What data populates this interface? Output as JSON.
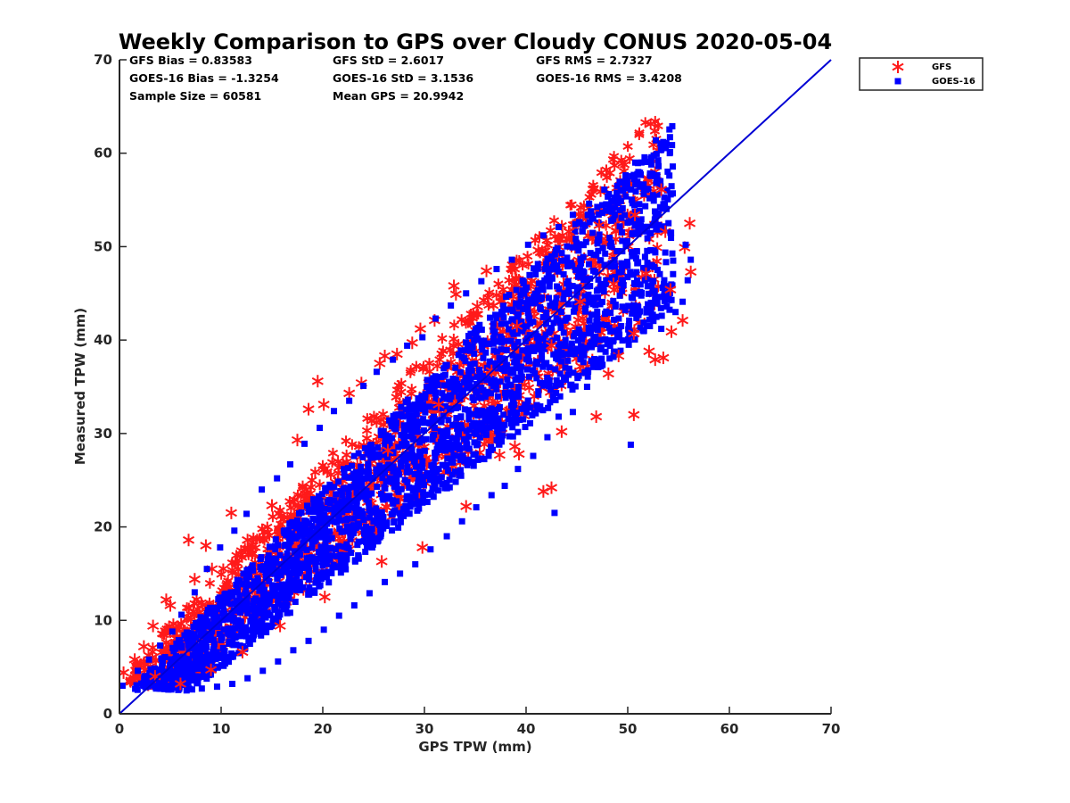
{
  "chart_data": {
    "type": "scatter",
    "title": "Weekly Comparison to GPS over Cloudy CONUS 2020-05-04",
    "xlabel": "GPS TPW (mm)",
    "ylabel": "Measured TPW (mm)",
    "xlim": [
      0,
      70
    ],
    "ylim": [
      0,
      70
    ],
    "xticks": [
      0,
      10,
      20,
      30,
      40,
      50,
      60,
      70
    ],
    "yticks": [
      0,
      10,
      20,
      30,
      40,
      50,
      60,
      70
    ],
    "grid": false,
    "legend_position": "outside top-right",
    "stats": [
      [
        "GFS Bias = 0.83583",
        "GFS StD = 2.6017",
        "GFS RMS = 2.7327"
      ],
      [
        "GOES-16 Bias = -1.3254",
        "GOES-16 StD = 3.1536",
        "GOES-16 RMS = 3.4208"
      ],
      [
        "Sample Size = 60581",
        "Mean GPS = 20.9942",
        ""
      ]
    ],
    "reference_line": {
      "x": [
        0,
        70
      ],
      "y": [
        0,
        70
      ],
      "color": "#0000d4"
    },
    "series": [
      {
        "name": "GFS",
        "marker": "asterisk",
        "color": "#ff1a1a",
        "points": [
          [
            0.4,
            4.4
          ],
          [
            1.5,
            5.8
          ],
          [
            2.4,
            7.2
          ],
          [
            3.3,
            9.4
          ],
          [
            4.6,
            12.2
          ],
          [
            5.0,
            11.6
          ],
          [
            6.8,
            18.6
          ],
          [
            8.5,
            18.0
          ],
          [
            9.1,
            15.5
          ],
          [
            11.0,
            21.5
          ],
          [
            12.6,
            18.6
          ],
          [
            15.0,
            22.3
          ],
          [
            17.5,
            29.3
          ],
          [
            18.6,
            32.6
          ],
          [
            19.5,
            35.6
          ],
          [
            20.1,
            33.1
          ],
          [
            22.6,
            34.3
          ],
          [
            23.8,
            35.4
          ],
          [
            25.6,
            37.5
          ],
          [
            26.1,
            38.3
          ],
          [
            27.3,
            38.5
          ],
          [
            28.8,
            39.7
          ],
          [
            29.6,
            41.2
          ],
          [
            31.0,
            42.1
          ],
          [
            32.9,
            45.8
          ],
          [
            33.1,
            44.9
          ],
          [
            35.2,
            43.6
          ],
          [
            36.1,
            47.4
          ],
          [
            41.2,
            49.6
          ],
          [
            44.2,
            51.6
          ],
          [
            47.2,
            52.3
          ],
          [
            50.7,
            53.4
          ],
          [
            53.3,
            56.1
          ],
          [
            53.7,
            51.6
          ],
          [
            55.6,
            49.9
          ],
          [
            56.1,
            52.5
          ],
          [
            56.2,
            47.3
          ],
          [
            55.4,
            42.1
          ],
          [
            54.3,
            40.9
          ],
          [
            53.5,
            38.1
          ],
          [
            52.7,
            37.9
          ],
          [
            52.1,
            38.8
          ],
          [
            50.6,
            40.7
          ],
          [
            49.1,
            38.3
          ],
          [
            48.1,
            36.4
          ],
          [
            46.9,
            31.8
          ],
          [
            50.6,
            32.0
          ],
          [
            43.5,
            30.2
          ],
          [
            42.5,
            24.2
          ],
          [
            41.7,
            23.8
          ],
          [
            39.3,
            27.8
          ],
          [
            38.9,
            28.6
          ],
          [
            37.4,
            27.7
          ],
          [
            34.1,
            22.2
          ],
          [
            29.8,
            17.8
          ],
          [
            25.8,
            16.3
          ],
          [
            20.2,
            12.5
          ],
          [
            15.8,
            9.4
          ],
          [
            12.1,
            6.6
          ],
          [
            9.0,
            4.7
          ],
          [
            6.0,
            3.2
          ],
          [
            3.5,
            4.0
          ],
          [
            7.4,
            14.4
          ],
          [
            13.1,
            17.2
          ],
          [
            21.5,
            27.0
          ],
          [
            26.4,
            28.2
          ],
          [
            31.4,
            33.1
          ],
          [
            36.6,
            36.7
          ],
          [
            39.1,
            41.5
          ],
          [
            42.5,
            39.4
          ],
          [
            45.3,
            44.1
          ],
          [
            48.6,
            46.0
          ],
          [
            51.8,
            47.1
          ],
          [
            54.2,
            45.4
          ]
        ]
      },
      {
        "name": "GOES-16",
        "marker": "square",
        "color": "#0000ff",
        "points": [
          [
            0.3,
            3.0
          ],
          [
            1.8,
            4.6
          ],
          [
            2.9,
            5.8
          ],
          [
            4.0,
            7.3
          ],
          [
            5.2,
            8.8
          ],
          [
            6.1,
            10.6
          ],
          [
            7.4,
            13.0
          ],
          [
            8.6,
            15.5
          ],
          [
            9.9,
            17.8
          ],
          [
            11.3,
            19.6
          ],
          [
            12.5,
            21.4
          ],
          [
            14.0,
            24.0
          ],
          [
            15.5,
            25.2
          ],
          [
            16.8,
            26.7
          ],
          [
            18.2,
            28.9
          ],
          [
            19.7,
            30.6
          ],
          [
            21.1,
            32.4
          ],
          [
            22.6,
            33.5
          ],
          [
            24.0,
            35.1
          ],
          [
            25.3,
            36.6
          ],
          [
            26.9,
            37.9
          ],
          [
            28.3,
            39.4
          ],
          [
            29.8,
            40.3
          ],
          [
            31.1,
            42.3
          ],
          [
            32.6,
            43.7
          ],
          [
            34.1,
            45.0
          ],
          [
            35.6,
            46.3
          ],
          [
            37.1,
            47.6
          ],
          [
            38.6,
            48.6
          ],
          [
            40.2,
            50.2
          ],
          [
            41.7,
            51.2
          ],
          [
            43.2,
            52.1
          ],
          [
            44.6,
            53.4
          ],
          [
            46.2,
            54.6
          ],
          [
            47.7,
            56.1
          ],
          [
            49.5,
            54.1
          ],
          [
            51.1,
            52.8
          ],
          [
            52.6,
            52.3
          ],
          [
            54.2,
            51.5
          ],
          [
            55.7,
            50.2
          ],
          [
            56.2,
            48.6
          ],
          [
            55.9,
            46.4
          ],
          [
            55.4,
            44.1
          ],
          [
            54.7,
            43.0
          ],
          [
            53.3,
            41.2
          ],
          [
            51.6,
            41.0
          ],
          [
            50.1,
            39.5
          ],
          [
            48.6,
            38.2
          ],
          [
            47.1,
            37.1
          ],
          [
            46.0,
            35.0
          ],
          [
            44.6,
            32.3
          ],
          [
            43.2,
            31.8
          ],
          [
            42.1,
            29.6
          ],
          [
            40.7,
            27.6
          ],
          [
            39.2,
            26.2
          ],
          [
            37.9,
            24.4
          ],
          [
            36.6,
            23.4
          ],
          [
            35.1,
            22.1
          ],
          [
            33.7,
            20.6
          ],
          [
            32.2,
            19.0
          ],
          [
            30.6,
            17.6
          ],
          [
            29.1,
            16.0
          ],
          [
            27.6,
            15.0
          ],
          [
            26.1,
            14.1
          ],
          [
            24.6,
            12.9
          ],
          [
            23.1,
            11.6
          ],
          [
            21.6,
            10.5
          ],
          [
            20.1,
            9.0
          ],
          [
            18.6,
            7.8
          ],
          [
            17.1,
            6.8
          ],
          [
            15.6,
            5.6
          ],
          [
            14.1,
            4.6
          ],
          [
            12.6,
            3.8
          ],
          [
            11.1,
            3.2
          ],
          [
            9.6,
            2.9
          ],
          [
            8.1,
            2.7
          ],
          [
            6.6,
            2.5
          ],
          [
            5.1,
            2.6
          ],
          [
            3.6,
            2.7
          ],
          [
            5.8,
            5.9
          ],
          [
            8.0,
            8.4
          ],
          [
            10.3,
            10.5
          ],
          [
            12.6,
            12.7
          ],
          [
            14.9,
            15.0
          ],
          [
            17.2,
            17.4
          ],
          [
            19.5,
            19.6
          ],
          [
            21.8,
            21.8
          ],
          [
            24.1,
            24.0
          ],
          [
            26.4,
            26.3
          ],
          [
            28.7,
            28.5
          ],
          [
            31.0,
            30.6
          ],
          [
            33.3,
            32.8
          ],
          [
            35.6,
            34.9
          ],
          [
            37.9,
            37.0
          ],
          [
            40.2,
            39.1
          ],
          [
            42.5,
            41.3
          ],
          [
            44.8,
            43.4
          ],
          [
            47.1,
            45.4
          ],
          [
            49.4,
            47.3
          ],
          [
            51.7,
            48.9
          ],
          [
            42.8,
            21.5
          ],
          [
            50.3,
            28.8
          ]
        ]
      }
    ]
  },
  "legend": [
    {
      "label": "GFS",
      "color": "#ff1a1a",
      "marker": "asterisk"
    },
    {
      "label": "GOES-16",
      "color": "#0000ff",
      "marker": "square"
    }
  ]
}
